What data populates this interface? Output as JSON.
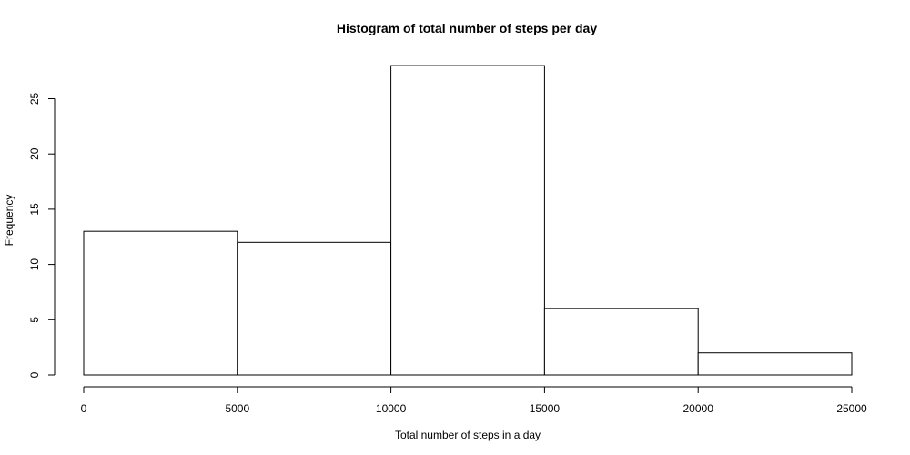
{
  "chart_data": {
    "type": "bar",
    "title": "Histogram of total number of steps per day",
    "xlabel": "Total number of steps in a day",
    "ylabel": "Frequency",
    "bins": [
      {
        "start": 0,
        "end": 5000,
        "count": 13
      },
      {
        "start": 5000,
        "end": 10000,
        "count": 12
      },
      {
        "start": 10000,
        "end": 15000,
        "count": 28
      },
      {
        "start": 15000,
        "end": 20000,
        "count": 6
      },
      {
        "start": 20000,
        "end": 25000,
        "count": 2
      }
    ],
    "xlim": [
      0,
      25000
    ],
    "ylim": [
      0,
      28
    ],
    "xticks": [
      "0",
      "5000",
      "10000",
      "15000",
      "20000",
      "25000"
    ],
    "yticks": [
      "0",
      "5",
      "10",
      "15",
      "20",
      "25"
    ],
    "grid": false,
    "bar_fill": "#ffffff",
    "stroke_color": "#000000"
  }
}
